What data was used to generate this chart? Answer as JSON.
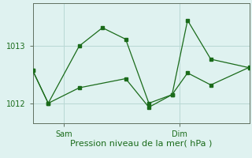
{
  "bg_color": "#dff2f0",
  "line_color": "#1a6b1a",
  "grid_color": "#b8d8d4",
  "xlabel": "Pression niveau de la mer( hPa )",
  "ylim": [
    1011.65,
    1013.75
  ],
  "xlim": [
    0,
    14
  ],
  "line1_x": [
    0,
    1,
    3,
    4.5,
    6,
    7.5,
    9,
    10,
    11.5,
    14
  ],
  "line1_y": [
    1012.57,
    1012.0,
    1013.0,
    1013.32,
    1013.12,
    1012.0,
    1012.15,
    1013.45,
    1012.77,
    1012.62
  ],
  "line2_x": [
    0,
    1,
    3,
    6,
    7.5,
    9,
    10,
    11.5,
    14
  ],
  "line2_y": [
    1012.57,
    1012.0,
    1012.27,
    1012.43,
    1011.93,
    1012.15,
    1012.53,
    1012.32,
    1012.63
  ],
  "sam_x": 2.0,
  "dim_x": 9.5,
  "yticks": [
    1012,
    1013
  ],
  "tick_fontsize": 7,
  "xlabel_fontsize": 8
}
